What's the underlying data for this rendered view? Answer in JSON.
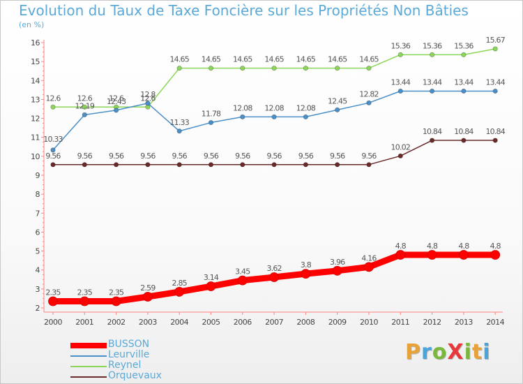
{
  "title": "Evolution du Taux de Taxe Foncière sur les Propriétés Non Bâties",
  "unit": "(en %)",
  "logo": {
    "text": "ProXiti",
    "colors": [
      "#e8a23a",
      "#49a5de",
      "#7ab83b",
      "#e8383c",
      "#7ab83b",
      "#e8a23a",
      "#49a5de"
    ]
  },
  "chart_data": {
    "type": "line",
    "x": [
      "2000",
      "2001",
      "2002",
      "2003",
      "2004",
      "2005",
      "2006",
      "2007",
      "2008",
      "2009",
      "2010",
      "2011",
      "2012",
      "2013",
      "2014"
    ],
    "ylim": [
      2,
      16
    ],
    "yticks": [
      2,
      3,
      4,
      5,
      6,
      7,
      8,
      9,
      10,
      11,
      12,
      13,
      14,
      15,
      16
    ],
    "grid": false,
    "legend_position": "bottom-left",
    "series": [
      {
        "name": "BUSSON",
        "color": "#ff0000",
        "values": [
          2.35,
          2.35,
          2.35,
          2.59,
          2.85,
          3.14,
          3.45,
          3.62,
          3.8,
          3.96,
          4.16,
          4.8,
          4.8,
          4.8,
          4.8
        ],
        "labels": [
          "2.35",
          "2.35",
          "2.35",
          "2.59",
          "2.85",
          "3.14",
          "3.45",
          "3.62",
          "3.8",
          "3.96",
          "4.16",
          "4.8",
          "4.8",
          "4.8",
          "4.8"
        ]
      },
      {
        "name": "Leurville",
        "color": "#4a8fc8",
        "values": [
          10.33,
          12.19,
          12.43,
          12.8,
          11.33,
          11.78,
          12.08,
          12.08,
          12.08,
          12.45,
          12.82,
          13.44,
          13.44,
          13.44,
          13.44
        ],
        "labels": [
          "10.33",
          "12.19",
          "12.43",
          "12.8",
          "11.33",
          "11.78",
          "12.08",
          "12.08",
          "12.08",
          "12.45",
          "12.82",
          "13.44",
          "13.44",
          "13.44",
          "13.44"
        ]
      },
      {
        "name": "Reynel",
        "color": "#8cd65a",
        "values": [
          12.6,
          12.6,
          12.6,
          12.6,
          14.65,
          14.65,
          14.65,
          14.65,
          14.65,
          14.65,
          14.65,
          15.36,
          15.36,
          15.36,
          15.67
        ],
        "labels": [
          "12.6",
          "12.6",
          "12.6",
          "12.6",
          "14.65",
          "14.65",
          "14.65",
          "14.65",
          "14.65",
          "14.65",
          "14.65",
          "15.36",
          "15.36",
          "15.36",
          "15.67"
        ]
      },
      {
        "name": "Orquevaux",
        "color": "#6b2a2a",
        "values": [
          9.56,
          9.56,
          9.56,
          9.56,
          9.56,
          9.56,
          9.56,
          9.56,
          9.56,
          9.56,
          9.56,
          10.02,
          10.84,
          10.84,
          10.84
        ],
        "labels": [
          "9.56",
          "9.56",
          "9.56",
          "9.56",
          "9.56",
          "9.56",
          "9.56",
          "9.56",
          "9.56",
          "9.56",
          "9.56",
          "10.02",
          "10.84",
          "10.84",
          "10.84"
        ]
      }
    ]
  }
}
